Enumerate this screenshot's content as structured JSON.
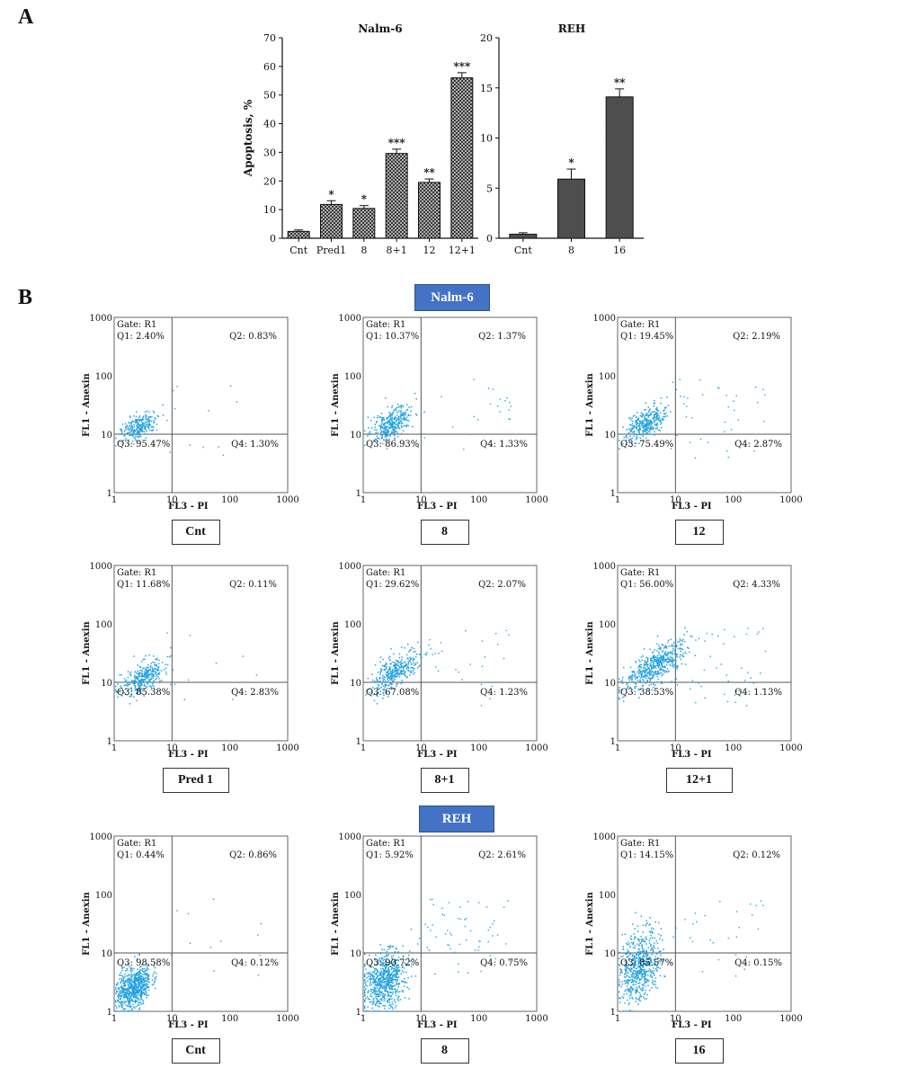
{
  "panel_labels": {
    "a": "A",
    "b": "B"
  },
  "chart_data": [
    {
      "type": "bar",
      "title": "Nalm-6",
      "ylabel": "Apoptosis, %",
      "xlabel": "",
      "categories": [
        "Cnt",
        "Pred1",
        "8",
        "8+1",
        "12",
        "12+1"
      ],
      "values": [
        2.4,
        11.8,
        10.4,
        29.6,
        19.5,
        56.0
      ],
      "errors": [
        0.5,
        1.3,
        1.0,
        1.5,
        1.2,
        1.8
      ],
      "significance": [
        "",
        "*",
        "*",
        "***",
        "**",
        "***"
      ],
      "ylim": [
        0,
        70
      ],
      "yticks": [
        0,
        10,
        20,
        30,
        40,
        50,
        60,
        70
      ],
      "bar_fill": "pattern-crosshatch",
      "grid": false
    },
    {
      "type": "bar",
      "title": "REH",
      "ylabel": "",
      "xlabel": "",
      "categories": [
        "Cnt",
        "8",
        "16"
      ],
      "values": [
        0.4,
        5.9,
        14.1
      ],
      "errors": [
        0.15,
        1.0,
        0.8
      ],
      "significance": [
        "",
        "*",
        "**"
      ],
      "ylim": [
        0,
        20
      ],
      "yticks": [
        0,
        5,
        10,
        15,
        20
      ],
      "bar_fill": "pattern-dark-gray",
      "grid": false
    }
  ],
  "flow": {
    "group_banners": {
      "nalm": "Nalm-6",
      "reh": "REH"
    },
    "xlabel": "FL3 - PI",
    "ylabel": "FL1 - Anexin",
    "tick_labels": [
      "1",
      "10",
      "100",
      "1000"
    ],
    "gate_label": "Gate: R1",
    "dot_color": "#29a3e0",
    "plots": [
      {
        "label": "Cnt",
        "q1": "Q1: 2.40%",
        "q2": "Q2: 0.83%",
        "q3": "Q3: 95.47%",
        "q4": "Q4: 1.30%"
      },
      {
        "label": "8",
        "q1": "Q1: 10.37%",
        "q2": "Q2: 1.37%",
        "q3": "Q3: 86.93%",
        "q4": "Q4: 1.33%"
      },
      {
        "label": "12",
        "q1": "Q1: 19.45%",
        "q2": "Q2: 2.19%",
        "q3": "Q3: 75.49%",
        "q4": "Q4: 2.87%"
      },
      {
        "label": "Pred 1",
        "q1": "Q1: 11.68%",
        "q2": "Q2: 0.11%",
        "q3": "Q3: 85.38%",
        "q4": "Q4: 2.83%"
      },
      {
        "label": "8+1",
        "q1": "Q1: 29.62%",
        "q2": "Q2: 2.07%",
        "q3": "Q3: 67.08%",
        "q4": "Q4: 1.23%"
      },
      {
        "label": "12+1",
        "q1": "Q1: 56.00%",
        "q2": "Q2: 4.33%",
        "q3": "Q3: 38.53%",
        "q4": "Q4: 1.13%"
      },
      {
        "label": "Cnt",
        "q1": "Q1: 0.44%",
        "q2": "Q2: 0.86%",
        "q3": "Q3: 98.58%",
        "q4": "Q4: 0.12%"
      },
      {
        "label": "8",
        "q1": "Q1: 5.92%",
        "q2": "Q2: 2.61%",
        "q3": "Q3: 90.72%",
        "q4": "Q4: 0.75%"
      },
      {
        "label": "16",
        "q1": "Q1: 14.15%",
        "q2": "Q2: 0.12%",
        "q3": "Q3: 85.57%",
        "q4": "Q4: 0.15%"
      }
    ]
  }
}
